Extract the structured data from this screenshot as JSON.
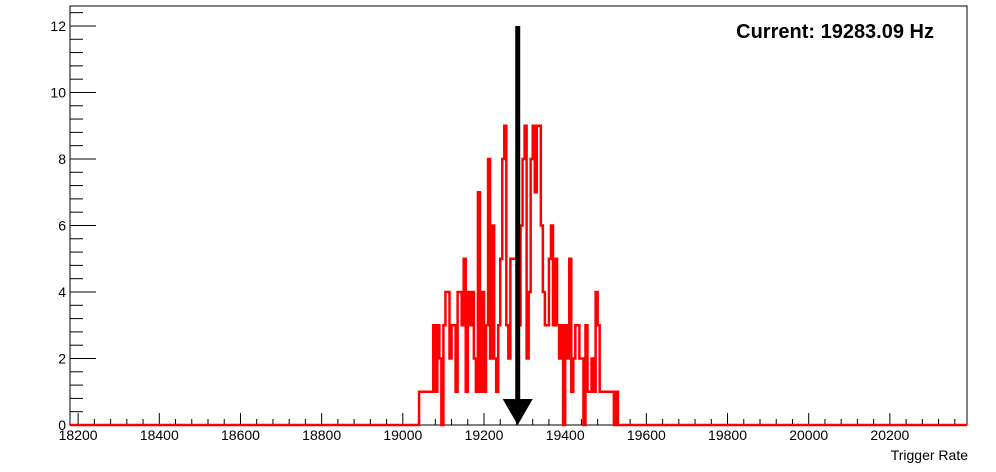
{
  "chart_data": {
    "type": "histogram",
    "title": "",
    "xlabel": "Trigger Rate",
    "ylabel": "",
    "xlim": [
      18180,
      20390
    ],
    "ylim": [
      0,
      12.6
    ],
    "x_ticks": [
      18200,
      18400,
      18600,
      18800,
      19000,
      19200,
      19400,
      19600,
      19800,
      20000,
      20200
    ],
    "y_ticks": [
      0,
      2,
      4,
      6,
      8,
      10,
      12
    ],
    "grid": false,
    "bin_width": 5,
    "bins": [
      [
        19040,
        1
      ],
      [
        19045,
        1
      ],
      [
        19050,
        1
      ],
      [
        19055,
        1
      ],
      [
        19060,
        1
      ],
      [
        19065,
        1
      ],
      [
        19070,
        1
      ],
      [
        19075,
        3
      ],
      [
        19080,
        1
      ],
      [
        19085,
        3
      ],
      [
        19090,
        2
      ],
      [
        19095,
        0
      ],
      [
        19100,
        3
      ],
      [
        19105,
        4
      ],
      [
        19110,
        4
      ],
      [
        19115,
        2
      ],
      [
        19120,
        3
      ],
      [
        19125,
        3
      ],
      [
        19130,
        1
      ],
      [
        19135,
        4
      ],
      [
        19140,
        4
      ],
      [
        19145,
        3
      ],
      [
        19150,
        5
      ],
      [
        19155,
        1
      ],
      [
        19160,
        4
      ],
      [
        19165,
        3
      ],
      [
        19170,
        4
      ],
      [
        19175,
        2
      ],
      [
        19180,
        1
      ],
      [
        19185,
        7
      ],
      [
        19190,
        1
      ],
      [
        19195,
        4
      ],
      [
        19200,
        1
      ],
      [
        19205,
        3
      ],
      [
        19210,
        8
      ],
      [
        19215,
        2
      ],
      [
        19220,
        6
      ],
      [
        19225,
        2
      ],
      [
        19230,
        1
      ],
      [
        19235,
        3
      ],
      [
        19240,
        5
      ],
      [
        19245,
        8
      ],
      [
        19250,
        9
      ],
      [
        19255,
        3
      ],
      [
        19260,
        2
      ],
      [
        19265,
        5
      ],
      [
        19270,
        5
      ],
      [
        19275,
        5
      ],
      [
        19280,
        5
      ],
      [
        19285,
        3
      ],
      [
        19290,
        6
      ],
      [
        19295,
        8
      ],
      [
        19300,
        9
      ],
      [
        19305,
        2
      ],
      [
        19310,
        4
      ],
      [
        19315,
        8
      ],
      [
        19320,
        9
      ],
      [
        19325,
        7
      ],
      [
        19330,
        9
      ],
      [
        19335,
        9
      ],
      [
        19340,
        6
      ],
      [
        19345,
        4
      ],
      [
        19350,
        3
      ],
      [
        19355,
        3
      ],
      [
        19360,
        5
      ],
      [
        19365,
        6
      ],
      [
        19370,
        3
      ],
      [
        19375,
        5
      ],
      [
        19380,
        3
      ],
      [
        19385,
        2
      ],
      [
        19390,
        3
      ],
      [
        19395,
        0
      ],
      [
        19400,
        3
      ],
      [
        19405,
        2
      ],
      [
        19410,
        5
      ],
      [
        19415,
        1
      ],
      [
        19420,
        2
      ],
      [
        19425,
        3
      ],
      [
        19430,
        3
      ],
      [
        19435,
        2
      ],
      [
        19440,
        2
      ],
      [
        19445,
        0
      ],
      [
        19450,
        3
      ],
      [
        19455,
        1
      ],
      [
        19460,
        1
      ],
      [
        19465,
        2
      ],
      [
        19470,
        1
      ],
      [
        19475,
        4
      ],
      [
        19480,
        3
      ],
      [
        19485,
        1
      ],
      [
        19490,
        1
      ],
      [
        19495,
        1
      ],
      [
        19500,
        1
      ],
      [
        19505,
        1
      ],
      [
        19510,
        1
      ],
      [
        19515,
        1
      ],
      [
        19520,
        0
      ],
      [
        19525,
        1
      ]
    ],
    "marker_x": 19283.09,
    "marker_from_y": 12,
    "line_color": "#ff0000",
    "marker_color": "#000000",
    "annotation": "Current: 19283.09 Hz",
    "annotation_position": "top-right"
  }
}
